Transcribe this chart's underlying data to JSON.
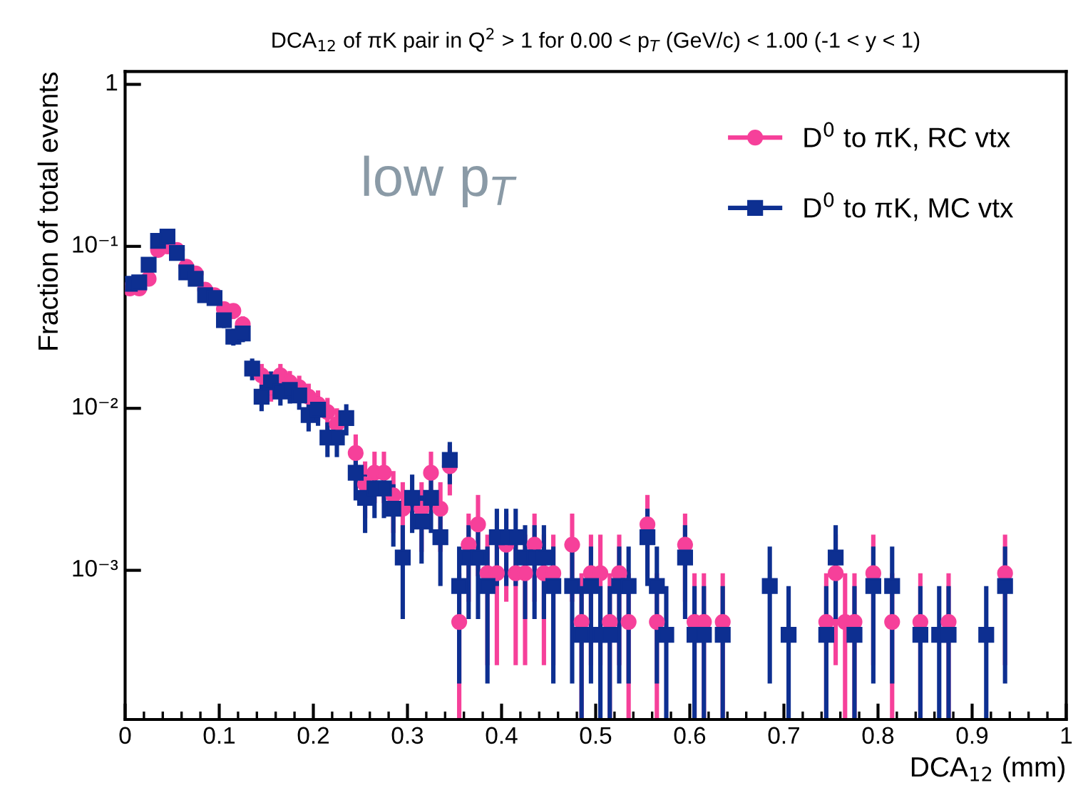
{
  "chart_data": {
    "type": "scatter",
    "title": "DCA$_{12}$ of πK pair in Q$^{2}$ > 1 for 0.00 < p$_{T}$ (GeV/c) < 1.00 (-1 < y < 1)",
    "xlabel": "DCA$_{12}$ (mm)",
    "ylabel": "Fraction of total events",
    "annotations": [
      "low p$_{T}$"
    ],
    "x": [
      0.005,
      0.015,
      0.025,
      0.035,
      0.045,
      0.055,
      0.065,
      0.075,
      0.085,
      0.095,
      0.105,
      0.115,
      0.125,
      0.135,
      0.145,
      0.155,
      0.165,
      0.175,
      0.185,
      0.195,
      0.205,
      0.215,
      0.225,
      0.235,
      0.245,
      0.255,
      0.265,
      0.275,
      0.285,
      0.295,
      0.305,
      0.315,
      0.325,
      0.335,
      0.345,
      0.355,
      0.365,
      0.375,
      0.385,
      0.395,
      0.405,
      0.415,
      0.425,
      0.435,
      0.445,
      0.455,
      0.465,
      0.475,
      0.485,
      0.495,
      0.505,
      0.515,
      0.525,
      0.535,
      0.545,
      0.555,
      0.565,
      0.575,
      0.585,
      0.595,
      0.605,
      0.615,
      0.625,
      0.635,
      0.645,
      0.655,
      0.665,
      0.675,
      0.685,
      0.695,
      0.705,
      0.715,
      0.725,
      0.735,
      0.745,
      0.755,
      0.765,
      0.775,
      0.785,
      0.795,
      0.805,
      0.815,
      0.825,
      0.835,
      0.845,
      0.855,
      0.865,
      0.875,
      0.885,
      0.895,
      0.905,
      0.915,
      0.925,
      0.935
    ],
    "series": [
      {
        "name": "D$^{0}$ to πK, RC vtx",
        "color": "#f6409a",
        "marker": "circle",
        "values": [
          0.055,
          0.055,
          0.063,
          0.095,
          0.1,
          0.095,
          0.075,
          0.068,
          0.054,
          0.05,
          0.041,
          0.04,
          0.033,
          null,
          0.016,
          0.0135,
          0.016,
          0.0145,
          0.0135,
          0.0118,
          0.0106,
          0.0095,
          0.008,
          null,
          0.0053,
          0.0034,
          0.004,
          0.004,
          0.0029,
          0.0024,
          null,
          0.0024,
          0.004,
          0.0024,
          0.0044,
          0.00048,
          0.00144,
          0.00192,
          0.00096,
          0.00096,
          0.00144,
          0.00096,
          0.00096,
          0.00144,
          0.00096,
          0.00096,
          null,
          0.00144,
          0.00048,
          0.00096,
          0.00096,
          0.00048,
          0.00096,
          0.00048,
          null,
          0.00192,
          0.00048,
          null,
          null,
          0.00144,
          0.00048,
          0.00048,
          null,
          0.00048,
          null,
          null,
          null,
          null,
          null,
          null,
          null,
          null,
          null,
          null,
          0.00048,
          0.00096,
          0.00048,
          0.00048,
          null,
          0.00096,
          null,
          0.00048,
          null,
          null,
          0.00048,
          null,
          null,
          0.00048,
          null,
          null,
          null,
          null,
          null,
          0.00096
        ],
        "errors": [
          0.0051,
          0.0051,
          0.0055,
          0.0068,
          0.0069,
          0.0068,
          0.006,
          null,
          null,
          0.0049,
          0.0044,
          0.0044,
          0.004,
          null,
          0.0028,
          0.0025,
          0.0028,
          0.0025,
          0.0024,
          0.0024,
          0.0023,
          0.0021,
          0.002,
          null,
          0.0016,
          0.0013,
          0.0014,
          0.0014,
          0.0012,
          0.0011,
          null,
          0.0011,
          0.0014,
          0.0011,
          0.0015,
          [
            0.00012,
            0.00096
          ],
          0.0008,
          0.001,
          0.0007,
          0.0007,
          0.0008,
          0.0007,
          0.0007,
          0.0008,
          0.0007,
          0.0007,
          null,
          0.0008,
          [
            0.00012,
            0.00096
          ],
          0.0007,
          0.0007,
          [
            0.00012,
            0.00096
          ],
          0.0007,
          [
            0.00012,
            0.00096
          ],
          null,
          0.001,
          [
            0.00012,
            0.00096
          ],
          null,
          null,
          0.0008,
          [
            0.00012,
            0.00096
          ],
          [
            0.00012,
            0.00096
          ],
          null,
          [
            0.00012,
            0.00096
          ],
          null,
          null,
          null,
          null,
          null,
          null,
          null,
          null,
          null,
          null,
          [
            0.00012,
            0.00096
          ],
          0.0007,
          [
            0.00012,
            0.00096
          ],
          [
            0.00012,
            0.00096
          ],
          null,
          0.0007,
          null,
          [
            0.00012,
            0.00096
          ],
          null,
          null,
          [
            0.00012,
            0.00096
          ],
          null,
          null,
          [
            0.00012,
            0.00096
          ],
          null,
          null,
          null,
          null,
          null,
          0.0007
        ]
      },
      {
        "name": "D$^{0}$ to πK, MC vtx",
        "color": "#0d2f91",
        "marker": "square",
        "values": [
          0.0587,
          0.06,
          0.077,
          0.108,
          0.115,
          0.091,
          0.069,
          0.063,
          0.05,
          0.048,
          0.035,
          0.0277,
          0.029,
          0.0176,
          0.0118,
          0.0145,
          0.0127,
          0.013,
          0.012,
          0.0091,
          0.0098,
          0.0066,
          0.0066,
          0.0087,
          0.004,
          0.0028,
          0.0032,
          0.0032,
          0.0024,
          0.0012,
          0.0028,
          0.002,
          0.0028,
          0.0016,
          0.0048,
          0.0008,
          0.0012,
          0.0012,
          0.0008,
          0.0016,
          0.0016,
          0.0016,
          0.0012,
          0.0012,
          0.0012,
          0.0008,
          null,
          0.0008,
          0.0004,
          0.0008,
          0.0004,
          0.0004,
          0.0008,
          0.0008,
          null,
          0.0016,
          0.0008,
          0.0004,
          null,
          0.0012,
          0.0004,
          0.0004,
          null,
          0.0004,
          null,
          null,
          null,
          null,
          0.0008,
          null,
          0.0004,
          null,
          null,
          null,
          0.0004,
          0.0012,
          null,
          0.0004,
          null,
          0.0008,
          null,
          0.0008,
          null,
          null,
          0.0004,
          null,
          0.0004,
          0.0004,
          null,
          null,
          null,
          0.0004,
          null,
          0.0008
        ],
        "errors": [
          0.0049,
          0.0049,
          0.0055,
          0.0066,
          0.0068,
          0.006,
          0.0053,
          null,
          null,
          0.0044,
          0.0037,
          0.0033,
          0.0034,
          0.0027,
          0.0022,
          0.0024,
          0.0023,
          0.0023,
          0.0022,
          0.0019,
          0.002,
          0.0016,
          0.0016,
          0.0019,
          0.0013,
          0.0011,
          0.0011,
          0.0011,
          0.001,
          0.0007,
          0.0011,
          0.0009,
          0.0011,
          0.0008,
          0.0014,
          0.0006,
          0.0007,
          0.0007,
          0.0006,
          0.0008,
          0.0008,
          0.0008,
          0.0007,
          0.0007,
          0.0007,
          0.0006,
          null,
          0.0006,
          [
            0.00012,
            0.0008
          ],
          0.0006,
          [
            0.00012,
            0.0008
          ],
          [
            0.00012,
            0.0008
          ],
          0.0006,
          0.0006,
          null,
          0.0008,
          0.0006,
          [
            0.00012,
            0.0008
          ],
          null,
          0.0007,
          [
            0.00012,
            0.0008
          ],
          [
            0.00012,
            0.0008
          ],
          null,
          [
            0.00012,
            0.0008
          ],
          null,
          null,
          null,
          null,
          0.0006,
          null,
          [
            0.00012,
            0.0008
          ],
          null,
          null,
          null,
          [
            0.00012,
            0.0008
          ],
          0.0007,
          null,
          [
            0.00012,
            0.0008
          ],
          null,
          0.0006,
          null,
          0.0006,
          null,
          null,
          [
            0.00012,
            0.0008
          ],
          null,
          [
            0.00012,
            0.0008
          ],
          [
            0.00012,
            0.0008
          ],
          null,
          null,
          null,
          [
            0.00012,
            0.0008
          ],
          null,
          0.0006
        ]
      }
    ],
    "log": "y",
    "xlim": [
      0,
      1
    ],
    "ylim": [
      0.00012,
      1.2
    ],
    "xticks": [
      0,
      0.1,
      0.2,
      0.3,
      0.4,
      0.5,
      0.6,
      0.7,
      0.8,
      0.9,
      1
    ],
    "yticks": [
      {
        "value": 0.001,
        "label": "10⁻³"
      },
      {
        "value": 0.01,
        "label": "10⁻²"
      },
      {
        "value": 0.1,
        "label": "10⁻¹"
      },
      1
    ],
    "legend": "top right",
    "grid": false
  }
}
